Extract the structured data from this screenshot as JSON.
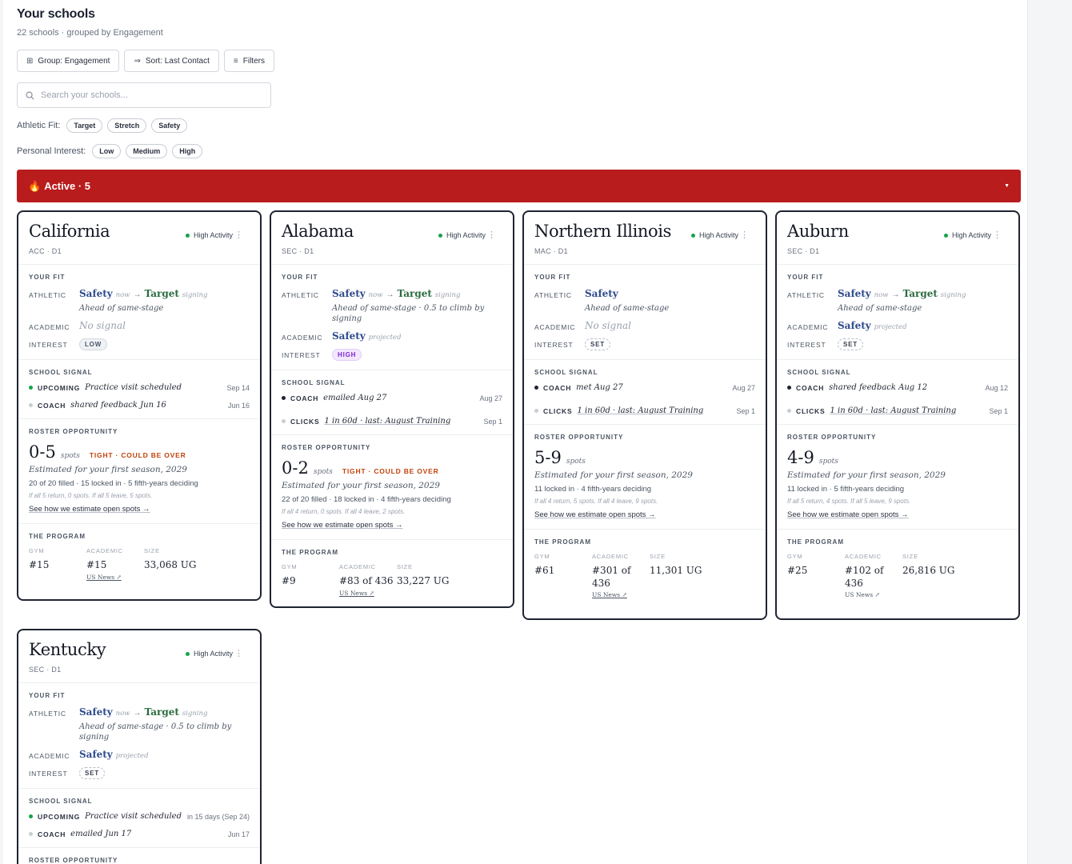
{
  "header": {
    "title": "Your schools",
    "subtitle": "22 schools · grouped by Engagement"
  },
  "toolbar": {
    "group_label": "Group: Engagement",
    "sort_label": "Sort: Last Contact",
    "filters_label": "Filters"
  },
  "search": {
    "placeholder": "Search your schools..."
  },
  "filters": {
    "athletic": {
      "label": "Athletic Fit:",
      "options": [
        "Target",
        "Stretch",
        "Safety"
      ]
    },
    "interest": {
      "label": "Personal Interest:",
      "options": [
        "Low",
        "Medium",
        "High"
      ]
    }
  },
  "group": {
    "title": "Active · 5",
    "color": "#b91c1c"
  },
  "labels": {
    "your_fit": "YOUR FIT",
    "athletic": "ATHLETIC",
    "academic": "ACADEMIC",
    "interest": "INTEREST",
    "school_signal": "SCHOOL SIGNAL",
    "roster": "ROSTER OPPORTUNITY",
    "program": "THE PROGRAM",
    "gym": "GYM",
    "academic_col": "ACADEMIC",
    "size": "SIZE",
    "spots": "spots",
    "see_how": "See how we estimate open spots →",
    "activity": "High Activity",
    "now": "now",
    "signing": "signing",
    "projected": "projected",
    "us_news": "US News ↗"
  },
  "cards": [
    {
      "name": "California",
      "conf": "ACC · D1",
      "athletic": {
        "from": "Safety",
        "to": "Target",
        "note": "Ahead of same-stage"
      },
      "academic": {
        "value": "No signal"
      },
      "interest": "LOW",
      "signals": [
        {
          "type": "UPCOMING",
          "text": "Practice visit scheduled",
          "date": "Sep 14"
        },
        {
          "type": "COACH",
          "text": "shared feedback Jun 16",
          "date": "Jun 16"
        }
      ],
      "roster": {
        "range": "0-5",
        "tight": "TIGHT · COULD BE OVER",
        "est": "Estimated for your first season, 2029",
        "filled": "20 of 20 filled · 15 locked in · 5 fifth-years deciding",
        "scen": "If all 5 return, 0 spots. If all 5 leave, 5 spots."
      },
      "program": {
        "gym": "#15",
        "academic": "#15",
        "size": "33,068 UG"
      }
    },
    {
      "name": "Alabama",
      "conf": "SEC · D1",
      "athletic": {
        "from": "Safety",
        "to": "Target",
        "note": "Ahead of same-stage · 0.5 to climb by signing"
      },
      "academic": {
        "value": "Safety"
      },
      "interest": "HIGH",
      "signals": [
        {
          "type": "COACH",
          "text": "emailed Aug 27",
          "date": "Aug 27"
        },
        {
          "type": "CLICKS",
          "text": "1 in 60d · last: August Training",
          "date": "Sep 1"
        }
      ],
      "roster": {
        "range": "0-2",
        "tight": "TIGHT · COULD BE OVER",
        "est": "Estimated for your first season, 2029",
        "filled": "22 of 20 filled · 18 locked in · 4 fifth-years deciding",
        "scen": "If all 4 return, 0 spots. If all 4 leave, 2 spots."
      },
      "program": {
        "gym": "#9",
        "academic": "#83 of 436",
        "size": "33,227 UG"
      }
    },
    {
      "name": "Northern Illinois",
      "conf": "MAC · D1",
      "athletic": {
        "from": "Safety",
        "to": "",
        "note": "Ahead of same-stage"
      },
      "academic": {
        "value": "No signal"
      },
      "interest": "SET",
      "signals": [
        {
          "type": "COACH",
          "text": "met Aug 27",
          "date": "Aug 27"
        },
        {
          "type": "CLICKS",
          "text": "1 in 60d · last: August Training",
          "date": "Sep 1"
        }
      ],
      "roster": {
        "range": "5-9",
        "tight": "",
        "est": "Estimated for your first season, 2029",
        "filled": "11 locked in · 4 fifth-years deciding",
        "scen": "If all 4 return, 5 spots. If all 4 leave, 9 spots."
      },
      "program": {
        "gym": "#61",
        "academic": "#301 of 436",
        "size": "11,301 UG"
      }
    },
    {
      "name": "Auburn",
      "conf": "SEC · D1",
      "athletic": {
        "from": "Safety",
        "to": "Target",
        "note": "Ahead of same-stage"
      },
      "academic": {
        "value": "Safety"
      },
      "interest": "SET",
      "signals": [
        {
          "type": "COACH",
          "text": "shared feedback Aug 12",
          "date": "Aug 12"
        },
        {
          "type": "CLICKS",
          "text": "1 in 60d · last: August Training",
          "date": "Sep 1"
        }
      ],
      "roster": {
        "range": "4-9",
        "tight": "",
        "est": "Estimated for your first season, 2029",
        "filled": "11 locked in · 5 fifth-years deciding",
        "scen": "If all 5 return, 4 spots. If all 5 leave, 9 spots."
      },
      "program": {
        "gym": "#25",
        "academic": "#102 of 436",
        "size": "26,816 UG"
      }
    },
    {
      "name": "Kentucky",
      "conf": "SEC · D1",
      "athletic": {
        "from": "Safety",
        "to": "Target",
        "note": "Ahead of same-stage · 0.5 to climb by signing"
      },
      "academic": {
        "value": "Safety"
      },
      "interest": "SET",
      "signals": [
        {
          "type": "UPCOMING",
          "text": "Practice visit scheduled",
          "date": "in 15 days (Sep 24)"
        },
        {
          "type": "COACH",
          "text": "emailed Jun 17",
          "date": "Jun 17"
        }
      ]
    }
  ]
}
